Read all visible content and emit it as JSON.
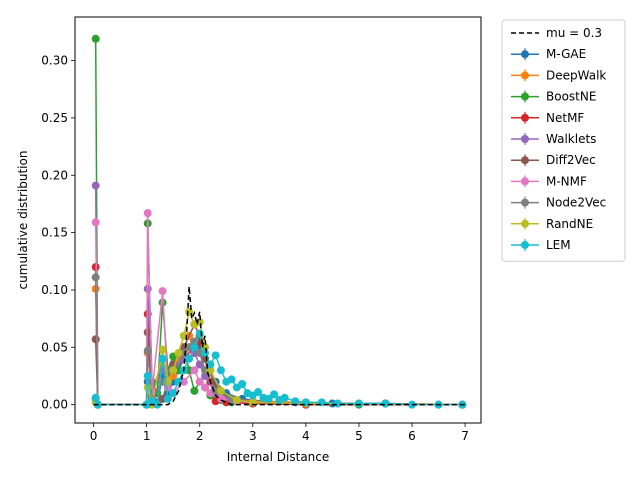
{
  "chart_data": {
    "type": "line",
    "title": "",
    "xlabel": "Internal Distance",
    "ylabel": "cumulative distribution",
    "xlim": [
      -0.35,
      7.3
    ],
    "ylim": [
      -0.016,
      0.338
    ],
    "xticks": [
      0,
      1,
      2,
      3,
      4,
      5,
      6,
      7
    ],
    "xtick_labels": [
      "0",
      "1",
      "2",
      "3",
      "4",
      "5",
      "6",
      "7"
    ],
    "yticks": [
      0.0,
      0.05,
      0.1,
      0.15,
      0.2,
      0.25,
      0.3
    ],
    "ytick_labels": [
      "0.00",
      "0.05",
      "0.10",
      "0.15",
      "0.20",
      "0.25",
      "0.30"
    ],
    "grid": false,
    "legend_position": "outside upper right",
    "reference": {
      "name": "mu = 0.3",
      "color": "#000000",
      "x": [
        0.0,
        1.4,
        1.5,
        1.6,
        1.7,
        1.75,
        1.8,
        1.85,
        1.9,
        1.95,
        2.0,
        2.05,
        2.1,
        2.15,
        2.2,
        2.3,
        2.4,
        2.5,
        2.6,
        7.0
      ],
      "y": [
        0.0,
        0.0,
        0.003,
        0.012,
        0.03,
        0.06,
        0.103,
        0.075,
        0.08,
        0.07,
        0.081,
        0.05,
        0.06,
        0.028,
        0.02,
        0.008,
        0.004,
        0.002,
        0.0,
        0.0
      ]
    },
    "series": [
      {
        "name": "M-GAE",
        "color": "#1f77b4",
        "x": [
          0.04,
          0.08,
          1.0,
          1.02,
          1.1,
          1.2,
          1.3,
          1.4,
          1.5,
          1.6,
          1.7,
          1.8,
          1.9,
          2.0,
          2.1,
          2.2,
          2.3,
          2.5,
          2.8,
          3.2,
          3.8,
          4.5,
          5.5,
          6.5,
          6.95
        ],
        "y": [
          0.005,
          0.0,
          0.0,
          0.02,
          0.005,
          0.002,
          0.025,
          0.01,
          0.02,
          0.03,
          0.04,
          0.05,
          0.055,
          0.05,
          0.04,
          0.03,
          0.02,
          0.01,
          0.005,
          0.003,
          0.002,
          0.001,
          0.001,
          0.0,
          0.0
        ]
      },
      {
        "name": "DeepWalk",
        "color": "#ff7f0e",
        "x": [
          0.04,
          0.08,
          1.0,
          1.02,
          1.1,
          1.3,
          1.4,
          1.5,
          1.6,
          1.7,
          1.8,
          1.9,
          2.0,
          2.1,
          2.2,
          2.3,
          2.6,
          3.0,
          4.0,
          5.0,
          6.95
        ],
        "y": [
          0.101,
          0.0,
          0.0,
          0.045,
          0.01,
          0.04,
          0.015,
          0.025,
          0.04,
          0.05,
          0.06,
          0.045,
          0.055,
          0.04,
          0.02,
          0.01,
          0.005,
          0.003,
          0.002,
          0.001,
          0.0
        ]
      },
      {
        "name": "BoostNE",
        "color": "#2ca02c",
        "x": [
          0.04,
          0.08,
          1.0,
          1.02,
          1.1,
          1.2,
          1.3,
          1.4,
          1.5,
          1.6,
          1.7,
          1.8,
          1.9,
          2.0,
          2.1,
          2.2,
          2.4,
          2.6,
          3.0,
          4.0,
          5.0,
          6.95
        ],
        "y": [
          0.319,
          0.0,
          0.0,
          0.158,
          0.02,
          0.01,
          0.089,
          0.03,
          0.042,
          0.03,
          0.05,
          0.03,
          0.012,
          0.02,
          0.015,
          0.008,
          0.004,
          0.002,
          0.001,
          0.0,
          0.0,
          0.0
        ]
      },
      {
        "name": "NetMF",
        "color": "#d62728",
        "x": [
          0.04,
          0.08,
          1.0,
          1.02,
          1.1,
          1.3,
          1.5,
          1.7,
          1.9,
          2.0,
          2.1,
          2.2,
          2.3,
          2.5,
          3.0,
          4.0,
          6.95
        ],
        "y": [
          0.12,
          0.0,
          0.0,
          0.079,
          0.008,
          0.02,
          0.03,
          0.04,
          0.05,
          0.055,
          0.04,
          0.02,
          0.003,
          0.002,
          0.001,
          0.0,
          0.0
        ]
      },
      {
        "name": "Walklets",
        "color": "#9467bd",
        "x": [
          0.04,
          0.08,
          1.0,
          1.02,
          1.1,
          1.3,
          1.5,
          1.7,
          1.8,
          1.9,
          2.0,
          2.1,
          2.3,
          2.6,
          3.0,
          4.0,
          6.95
        ],
        "y": [
          0.191,
          0.0,
          0.0,
          0.101,
          0.01,
          0.03,
          0.03,
          0.04,
          0.05,
          0.045,
          0.035,
          0.025,
          0.01,
          0.004,
          0.002,
          0.001,
          0.0
        ]
      },
      {
        "name": "Diff2Vec",
        "color": "#8c564b",
        "x": [
          0.04,
          0.08,
          1.0,
          1.02,
          1.1,
          1.3,
          1.5,
          1.7,
          1.9,
          2.0,
          2.1,
          2.3,
          2.6,
          3.0,
          4.0,
          5.5,
          6.95
        ],
        "y": [
          0.057,
          0.0,
          0.0,
          0.063,
          0.01,
          0.005,
          0.035,
          0.05,
          0.07,
          0.06,
          0.04,
          0.015,
          0.005,
          0.002,
          0.001,
          0.001,
          0.0
        ]
      },
      {
        "name": "M-NMF",
        "color": "#e377c2",
        "x": [
          0.04,
          0.08,
          1.0,
          1.02,
          1.1,
          1.3,
          1.4,
          1.5,
          1.7,
          1.9,
          2.0,
          2.1,
          2.2,
          2.4,
          2.7,
          3.0,
          4.0,
          6.95
        ],
        "y": [
          0.159,
          0.0,
          0.0,
          0.167,
          0.01,
          0.099,
          0.015,
          0.01,
          0.02,
          0.03,
          0.02,
          0.015,
          0.01,
          0.005,
          0.003,
          0.002,
          0.001,
          0.0
        ]
      },
      {
        "name": "Node2Vec",
        "color": "#7f7f7f",
        "x": [
          0.04,
          0.08,
          1.0,
          1.02,
          1.1,
          1.3,
          1.5,
          1.7,
          1.8,
          1.9,
          2.0,
          2.1,
          2.3,
          2.6,
          3.0,
          4.0,
          6.95
        ],
        "y": [
          0.111,
          0.0,
          0.0,
          0.047,
          0.005,
          0.02,
          0.03,
          0.045,
          0.05,
          0.055,
          0.045,
          0.03,
          0.012,
          0.005,
          0.002,
          0.001,
          0.0
        ]
      },
      {
        "name": "RandNE",
        "color": "#bcbd22",
        "x": [
          0.04,
          0.08,
          1.0,
          1.02,
          1.1,
          1.3,
          1.4,
          1.5,
          1.6,
          1.7,
          1.8,
          1.9,
          2.0,
          2.1,
          2.2,
          2.4,
          2.7,
          3.0,
          4.0,
          6.95
        ],
        "y": [
          0.002,
          0.0,
          0.0,
          0.015,
          0.0,
          0.048,
          0.02,
          0.03,
          0.045,
          0.06,
          0.081,
          0.07,
          0.072,
          0.05,
          0.03,
          0.012,
          0.004,
          0.002,
          0.001,
          0.0
        ]
      },
      {
        "name": "LEM",
        "color": "#17becf",
        "x": [
          0.04,
          0.08,
          1.0,
          1.02,
          1.1,
          1.2,
          1.3,
          1.4,
          1.5,
          1.6,
          1.7,
          1.8,
          1.9,
          2.0,
          2.1,
          2.2,
          2.3,
          2.4,
          2.5,
          2.6,
          2.7,
          2.8,
          2.9,
          3.0,
          3.1,
          3.2,
          3.3,
          3.4,
          3.5,
          3.6,
          3.8,
          4.0,
          4.3,
          4.6,
          5.0,
          5.5,
          6.0,
          6.5,
          6.95
        ],
        "y": [
          0.006,
          0.0,
          0.0,
          0.025,
          0.003,
          0.0,
          0.04,
          0.005,
          0.01,
          0.02,
          0.03,
          0.04,
          0.05,
          0.062,
          0.045,
          0.035,
          0.043,
          0.03,
          0.02,
          0.022,
          0.015,
          0.018,
          0.01,
          0.008,
          0.011,
          0.006,
          0.005,
          0.009,
          0.004,
          0.006,
          0.003,
          0.002,
          0.002,
          0.001,
          0.001,
          0.001,
          0.0,
          0.0,
          0.0
        ]
      }
    ]
  }
}
